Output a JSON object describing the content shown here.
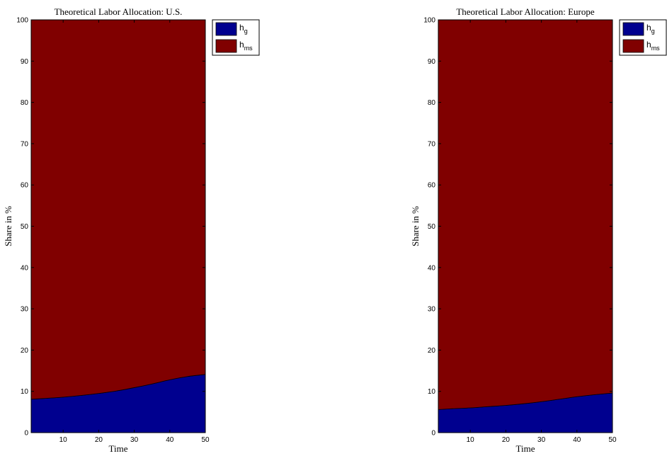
{
  "chart_data": [
    {
      "type": "area",
      "title": "Theoretical Labor Allocation: U.S.",
      "xlabel": "Time",
      "ylabel": "Share in %",
      "xlim": [
        1,
        50
      ],
      "ylim": [
        0,
        100
      ],
      "xticks": [
        10,
        20,
        30,
        40,
        50
      ],
      "yticks": [
        0,
        10,
        20,
        30,
        40,
        50,
        60,
        70,
        80,
        90,
        100
      ],
      "stacked": true,
      "grid": false,
      "legend_position": "outside-top-right",
      "x": [
        1,
        5,
        10,
        15,
        20,
        25,
        30,
        35,
        40,
        45,
        50
      ],
      "series": [
        {
          "name": "h",
          "subscript": "g",
          "color": "#00008f",
          "values": [
            8.1,
            8.3,
            8.6,
            9.0,
            9.5,
            10.1,
            10.9,
            11.8,
            12.8,
            13.6,
            14.1
          ]
        },
        {
          "name": "h",
          "subscript": "ms",
          "color": "#800000",
          "values": [
            91.9,
            91.7,
            91.4,
            91.0,
            90.5,
            89.9,
            89.1,
            88.2,
            87.2,
            86.4,
            85.9
          ]
        }
      ]
    },
    {
      "type": "area",
      "title": "Theoretical Labor Allocation: Europe",
      "xlabel": "Time",
      "ylabel": "Share in %",
      "xlim": [
        1,
        50
      ],
      "ylim": [
        0,
        100
      ],
      "xticks": [
        10,
        20,
        30,
        40,
        50
      ],
      "yticks": [
        0,
        10,
        20,
        30,
        40,
        50,
        60,
        70,
        80,
        90,
        100
      ],
      "stacked": true,
      "grid": false,
      "legend_position": "outside-top-right",
      "x": [
        1,
        5,
        10,
        15,
        20,
        25,
        30,
        35,
        40,
        45,
        50
      ],
      "series": [
        {
          "name": "h",
          "subscript": "g",
          "color": "#00008f",
          "values": [
            5.6,
            5.8,
            6.0,
            6.3,
            6.6,
            7.0,
            7.5,
            8.1,
            8.7,
            9.2,
            9.6
          ]
        },
        {
          "name": "h",
          "subscript": "ms",
          "color": "#800000",
          "values": [
            94.4,
            94.2,
            94.0,
            93.7,
            93.4,
            93.0,
            92.5,
            91.9,
            91.3,
            90.8,
            90.4
          ]
        }
      ]
    }
  ]
}
